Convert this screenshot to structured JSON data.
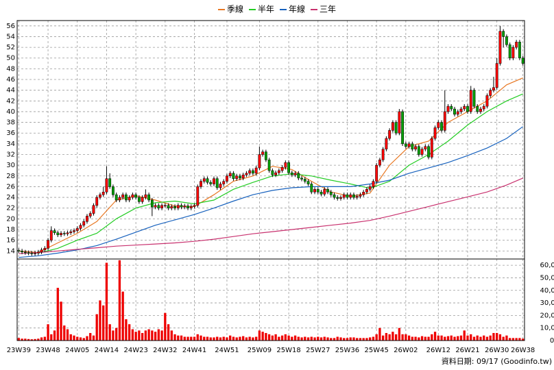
{
  "chart_data": {
    "type": "candlestick",
    "legend": true,
    "source": "資料日期: 09/17 (Goodinfo.tw)",
    "xlim": [
      -0.5,
      155.5
    ],
    "xticks": [
      {
        "value": 0,
        "label": "23W39"
      },
      {
        "value": 9,
        "label": "23W48"
      },
      {
        "value": 18,
        "label": "24W05"
      },
      {
        "value": 27,
        "label": "24W14"
      },
      {
        "value": 36,
        "label": "24W23"
      },
      {
        "value": 45,
        "label": "24W32"
      },
      {
        "value": 54,
        "label": "24W41"
      },
      {
        "value": 64,
        "label": "24W51"
      },
      {
        "value": 74,
        "label": "25W09"
      },
      {
        "value": 83,
        "label": "25W18"
      },
      {
        "value": 92,
        "label": "25W27"
      },
      {
        "value": 101,
        "label": "25W36"
      },
      {
        "value": 110,
        "label": "25W45"
      },
      {
        "value": 119,
        "label": "26W02"
      },
      {
        "value": 129,
        "label": "26W12"
      },
      {
        "value": 138,
        "label": "26W21"
      },
      {
        "value": 147,
        "label": "26W30"
      },
      {
        "value": 155,
        "label": "26W38"
      }
    ],
    "ylim": [
      12.5,
      57
    ],
    "yticks": [
      14,
      16,
      18,
      20,
      22,
      24,
      26,
      28,
      30,
      32,
      34,
      36,
      38,
      40,
      42,
      44,
      46,
      48,
      50,
      52,
      54,
      56
    ],
    "grid": true,
    "up_color": "#ff0000",
    "down_color": "#00a000",
    "open": [
      14.1,
      14,
      13.8,
      13.7,
      13.6,
      13.5,
      13.6,
      13.8,
      14.2,
      14.5,
      16,
      17.8,
      17.4,
      17,
      17.3,
      17.2,
      17.4,
      17.6,
      17.8,
      18.2,
      18.8,
      19.5,
      20.5,
      21,
      22.5,
      24,
      24.5,
      25,
      27.5,
      26,
      24.5,
      23.5,
      24,
      24.5,
      23.5,
      24,
      24.5,
      24,
      23.2,
      24,
      24.5,
      23.5,
      22.2,
      22.5,
      22,
      22.5,
      22.5,
      22,
      22.3,
      22,
      22.5,
      22.2,
      22.4,
      22,
      22.3,
      22.5,
      26,
      27,
      27.5,
      26.8,
      26.5,
      27.5,
      25.8,
      26.5,
      27,
      28,
      28.5,
      27.5,
      28,
      27.6,
      28.2,
      28.5,
      29,
      28.5,
      29.5,
      32,
      32.5,
      31,
      29,
      28.2,
      28.6,
      29,
      29.6,
      30.5,
      28.6,
      28.2,
      28.5,
      27.6,
      27.4,
      27,
      26.5,
      25,
      25.5,
      25,
      24.6,
      25.5,
      25,
      24.5,
      24,
      23.8,
      24,
      24.5,
      24,
      24.5,
      24,
      24.2,
      24.5,
      25,
      25.5,
      26,
      27,
      30,
      31,
      33,
      35,
      36.5,
      38,
      36,
      40,
      34,
      33.5,
      34,
      33,
      33.5,
      32,
      33,
      33.5,
      31.5,
      35,
      37,
      38,
      36.5,
      40,
      41,
      40.5,
      39.5,
      40,
      40.5,
      41,
      40,
      44,
      41,
      40,
      40.5,
      41,
      43,
      44,
      44.5,
      49,
      55,
      54,
      52.5,
      50,
      52,
      53,
      50
    ],
    "high": [
      14.5,
      14.4,
      14.2,
      14.1,
      14.0,
      14.0,
      14.2,
      14.6,
      14.9,
      16.4,
      18.6,
      18.2,
      17.8,
      17.7,
      17.7,
      17.8,
      18.0,
      18.2,
      18.6,
      19.2,
      19.9,
      20.9,
      21.4,
      22.9,
      24.4,
      24.9,
      26,
      29.8,
      28.5,
      26.4,
      24.9,
      24.4,
      24.9,
      24.9,
      24.4,
      24.9,
      24.9,
      24.4,
      24.4,
      25.5,
      24.9,
      23.9,
      22.9,
      22.9,
      22.9,
      22.9,
      22.9,
      22.7,
      22.7,
      22.9,
      22.9,
      22.8,
      22.8,
      22.7,
      22.9,
      26.4,
      27.4,
      27.9,
      27.9,
      27.2,
      27.9,
      27.9,
      26.9,
      27.4,
      28.4,
      28.9,
      28.9,
      28.4,
      28.4,
      28.6,
      28.9,
      29.4,
      29.4,
      29.9,
      33.5,
      32.9,
      32.9,
      31.4,
      29.4,
      29.0,
      29.4,
      30.0,
      30.9,
      30.9,
      29.0,
      28.9,
      28.9,
      28.0,
      27.8,
      27.4,
      26.9,
      25.9,
      25.9,
      25.4,
      25.9,
      25.9,
      25.4,
      24.9,
      24.4,
      24.4,
      24.9,
      24.9,
      24.9,
      24.9,
      24.6,
      24.9,
      25.4,
      25.9,
      26.4,
      27.4,
      30.4,
      31.4,
      33.4,
      35.4,
      36.9,
      38.4,
      38.4,
      40.5,
      40.4,
      34.4,
      34.4,
      34.4,
      33.9,
      33.9,
      33.4,
      33.9,
      33.9,
      35.4,
      37.4,
      38.4,
      38.4,
      44,
      41.4,
      41.4,
      40.9,
      40.4,
      40.9,
      41.4,
      41.4,
      44.8,
      44.4,
      41.4,
      40.9,
      41.4,
      43.4,
      44.4,
      46.5,
      50,
      56,
      55.4,
      54.4,
      52.9,
      52.4,
      53.4,
      53.4,
      50.4
    ],
    "low": [
      13.6,
      13.4,
      13.3,
      13.2,
      13.1,
      13.1,
      13.2,
      13.4,
      13.8,
      14.1,
      15.6,
      17.0,
      16.6,
      16.6,
      16.8,
      16.8,
      17.0,
      17.2,
      17.4,
      17.8,
      18.4,
      19.1,
      20.1,
      20.6,
      22.1,
      23.6,
      24.1,
      24.6,
      25.6,
      24.1,
      23.1,
      23.1,
      23.6,
      23.1,
      23.1,
      23.6,
      23.6,
      22.8,
      22.8,
      23.6,
      23.1,
      20.5,
      21.8,
      21.6,
      21.6,
      22.1,
      21.6,
      21.6,
      21.6,
      21.6,
      21.8,
      21.8,
      21.6,
      21.6,
      21.9,
      22.1,
      25.6,
      26.6,
      26.4,
      26.1,
      26.1,
      25.4,
      25.4,
      26.1,
      26.6,
      27.6,
      27.1,
      27.1,
      27.2,
      27.2,
      27.8,
      28.1,
      28.1,
      28.1,
      29.1,
      31.6,
      30.6,
      28.6,
      27.8,
      27.8,
      28.2,
      28.6,
      29.2,
      28.2,
      27.8,
      27.8,
      27.2,
      27.0,
      26.6,
      26.1,
      24.6,
      24.6,
      24.6,
      24.2,
      24.2,
      24.6,
      24.1,
      23.6,
      23.4,
      23.4,
      23.6,
      23.6,
      23.6,
      23.6,
      23.6,
      23.8,
      24.1,
      24.6,
      25.1,
      25.6,
      26.6,
      29.6,
      30.6,
      32.6,
      34.6,
      36.1,
      35.6,
      35.6,
      33.6,
      33.1,
      33.1,
      32.6,
      32.6,
      31.6,
      31.6,
      32.6,
      31.1,
      31.1,
      34.6,
      36.6,
      36.1,
      36.1,
      39.6,
      40.1,
      39.1,
      39.1,
      39.6,
      40.1,
      39.6,
      39.6,
      40.6,
      39.6,
      39.6,
      40.1,
      40.6,
      42.6,
      43.6,
      44.1,
      48.6,
      52,
      52.1,
      49.6,
      49.6,
      51.6,
      49.6,
      48.6
    ],
    "close": [
      14,
      13.8,
      13.7,
      13.6,
      13.5,
      13.6,
      13.8,
      14.2,
      14.5,
      16,
      17.8,
      17.4,
      17,
      17.3,
      17.2,
      17.4,
      17.6,
      17.8,
      18.2,
      18.8,
      19.5,
      20.5,
      21,
      22.5,
      24,
      24.5,
      25,
      27.5,
      26,
      24.5,
      23.5,
      24,
      24.5,
      23.5,
      24,
      24.5,
      24,
      23.2,
      24,
      24.5,
      23.5,
      22.2,
      22.5,
      22,
      22.5,
      22.5,
      22,
      22.3,
      22,
      22.5,
      22.2,
      22.4,
      22,
      22.3,
      22.5,
      26,
      27,
      27.5,
      26.8,
      26.5,
      27.5,
      25.8,
      26.5,
      27,
      28,
      28.5,
      27.5,
      28,
      27.6,
      28.2,
      28.5,
      29,
      28.5,
      29.5,
      32,
      32.5,
      31,
      29,
      28.2,
      28.6,
      29,
      29.6,
      30.5,
      28.6,
      28.2,
      28.5,
      27.6,
      27.4,
      27,
      26.5,
      25,
      25.5,
      25,
      24.6,
      25.5,
      25,
      24.5,
      24,
      23.8,
      24,
      24.5,
      24,
      24.5,
      24,
      24.2,
      24.5,
      25,
      25.5,
      26,
      27,
      30,
      31,
      33,
      35,
      36.5,
      38,
      36,
      40,
      34,
      33.5,
      34,
      33,
      33.5,
      32,
      33,
      33.5,
      31.5,
      35,
      37,
      38,
      36.5,
      40,
      41,
      40.5,
      39.5,
      40,
      40.5,
      41,
      40,
      44,
      41,
      40,
      40.5,
      41,
      43,
      44,
      44.5,
      49,
      55,
      54,
      52.5,
      50,
      52,
      53,
      50,
      49
    ],
    "ma_x": [
      0,
      6,
      12,
      18,
      24,
      30,
      36,
      42,
      48,
      54,
      60,
      66,
      72,
      78,
      84,
      90,
      96,
      102,
      108,
      114,
      120,
      126,
      132,
      138,
      144,
      150,
      155
    ],
    "series": [
      {
        "name": "季線",
        "color": "#e87722",
        "values": [
          14.0,
          13.7,
          15.5,
          17.3,
          19.5,
          23.5,
          24.3,
          23.5,
          22.4,
          22.3,
          24.5,
          27.0,
          28.0,
          29.8,
          29.2,
          27.0,
          25.0,
          24.2,
          24.8,
          30,
          33.5,
          34.5,
          38,
          40,
          42,
          45,
          46.3
        ]
      },
      {
        "name": "半年",
        "color": "#22cc22",
        "values": [
          null,
          13.6,
          14.5,
          16.0,
          17.3,
          20,
          22,
          23,
          23.3,
          22.8,
          23.5,
          25.5,
          26.8,
          28,
          28.4,
          28.0,
          27.2,
          26.5,
          25.7,
          27,
          30,
          32,
          34.5,
          37.5,
          40,
          42,
          43.3
        ]
      },
      {
        "name": "年線",
        "color": "#1560bd",
        "values": [
          12.8,
          13.1,
          13.6,
          14.2,
          15,
          16.2,
          17.5,
          18.8,
          19.8,
          20.8,
          22,
          23.3,
          24.5,
          25.3,
          25.8,
          26.0,
          26.0,
          26.0,
          26.5,
          27.2,
          28.5,
          29.5,
          30.5,
          31.8,
          33.2,
          35,
          37.2
        ]
      },
      {
        "name": "三年",
        "color": "#c8306e",
        "values": [
          13.5,
          13.7,
          14.0,
          14.3,
          14.6,
          14.9,
          15.1,
          15.3,
          15.5,
          15.8,
          16.2,
          16.7,
          17.2,
          17.6,
          18.0,
          18.4,
          18.8,
          19.2,
          19.7,
          20.5,
          21.4,
          22.3,
          23.2,
          24.1,
          25.0,
          26.3,
          27.6
        ]
      }
    ],
    "volume_color": "#ee0000",
    "volume": [
      2000,
      1500,
      1500,
      1200,
      1000,
      1200,
      1500,
      2500,
      3000,
      13000,
      5000,
      8000,
      42000,
      31000,
      12000,
      9000,
      5000,
      4000,
      3000,
      2500,
      2000,
      3500,
      6000,
      4000,
      21000,
      32000,
      28000,
      62000,
      13000,
      8000,
      10000,
      64000,
      39000,
      17000,
      13000,
      9000,
      7000,
      8000,
      6000,
      8000,
      9000,
      8000,
      7000,
      9000,
      8000,
      22000,
      13000,
      8000,
      5000,
      4000,
      4000,
      3000,
      3000,
      3000,
      3000,
      5000,
      4000,
      3000,
      3000,
      2500,
      2500,
      3000,
      2500,
      3000,
      2500,
      4000,
      3000,
      2500,
      3000,
      3500,
      2500,
      3000,
      2500,
      3000,
      8000,
      7000,
      6000,
      5000,
      4000,
      5000,
      3000,
      4000,
      5000,
      4000,
      3000,
      4000,
      3000,
      2500,
      3000,
      2500,
      3000,
      2500,
      3000,
      2500,
      3000,
      2500,
      2000,
      2000,
      3000,
      2500,
      2000,
      2000,
      2500,
      2500,
      2000,
      2000,
      2000,
      2000,
      2500,
      3000,
      5000,
      10000,
      4000,
      6000,
      5000,
      7000,
      5000,
      10000,
      5000,
      5000,
      4000,
      3000,
      3000,
      2500,
      3500,
      3000,
      3000,
      5000,
      7000,
      4000,
      4000,
      3000,
      3500,
      4000,
      3000,
      3500,
      4000,
      8000,
      4000,
      5000,
      3000,
      4000,
      3000,
      4000,
      3000,
      4000,
      6000,
      6000,
      5000,
      3000,
      4000,
      2000,
      2000,
      2000,
      2000,
      1500
    ],
    "volume_ylim": [
      0,
      65000
    ],
    "volume_yticks": [
      0,
      {
        "value": 10000,
        "label": "10,000"
      },
      {
        "value": 20000,
        "label": "20,000"
      },
      {
        "value": 30000,
        "label": "30,000"
      },
      {
        "value": 40000,
        "label": "40,000"
      },
      {
        "value": 50000,
        "label": "50,000"
      },
      {
        "value": 60000,
        "label": "60,000"
      }
    ]
  }
}
